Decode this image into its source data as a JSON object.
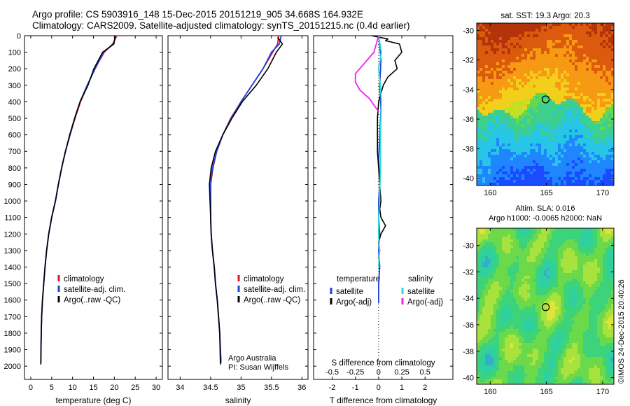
{
  "header": {
    "line1": "Argo profile: CS 5903916_148 15-Dec-2015 20151219_905 34.668S 164.932E",
    "line2": "Climatology: CARS2009. Satellite-adjusted climatology: synTS_20151215.nc (0.4d earlier)"
  },
  "credit": "©IMOS 24-Dec-2015 20:40:26",
  "colors": {
    "climatology": "#e8112d",
    "satellite": "#1f3fe0",
    "argo": "#000000",
    "sat_salinity": "#22dddd",
    "argo_salinity": "#ee22ee",
    "marker_edge": "#000000"
  },
  "chart_data": [
    {
      "id": "temperature-profile",
      "type": "line",
      "xlabel": "temperature (deg C)",
      "ylabel": "",
      "xlim": [
        -1.5,
        31.5
      ],
      "ylim": [
        2080,
        0
      ],
      "xticks": [
        0,
        5,
        10,
        15,
        20,
        25,
        30
      ],
      "yticks": [
        0,
        100,
        200,
        300,
        400,
        500,
        600,
        700,
        800,
        900,
        1000,
        1100,
        1200,
        1300,
        1400,
        1500,
        1600,
        1700,
        1800,
        1900,
        2000
      ],
      "legend": {
        "position": "lower-middle",
        "entries": [
          "climatology",
          "satellite-adj. clim.",
          "Argo(..raw -QC)"
        ]
      },
      "series": [
        {
          "name": "climatology",
          "color_key": "climatology",
          "x": [
            20.6,
            19.6,
            17.6,
            15.3,
            13.6,
            11.9,
            10.6,
            9.4,
            8.3,
            7.4,
            6.6,
            5.9,
            5.0,
            4.3,
            3.8,
            3.4,
            3.1,
            2.8,
            2.6,
            2.5,
            2.4
          ],
          "y": [
            0,
            50,
            100,
            200,
            300,
            400,
            500,
            600,
            700,
            800,
            900,
            1000,
            1100,
            1200,
            1300,
            1400,
            1500,
            1600,
            1700,
            1800,
            1980
          ]
        },
        {
          "name": "satellite-adj. clim.",
          "color_key": "satellite",
          "x": [
            20.3,
            19.8,
            17.4,
            15.4,
            13.5,
            11.8,
            10.5,
            9.4,
            8.3,
            7.4,
            6.6,
            5.9,
            5.0,
            4.3,
            3.8,
            3.4,
            3.1,
            2.8,
            2.6,
            2.5,
            2.4
          ],
          "y": [
            0,
            50,
            100,
            200,
            300,
            400,
            500,
            600,
            700,
            800,
            900,
            1000,
            1100,
            1200,
            1300,
            1400,
            1500,
            1600,
            1700,
            1800,
            1980
          ]
        },
        {
          "name": "Argo(..raw -QC)",
          "color_key": "argo",
          "x": [
            20.2,
            19.9,
            17.2,
            15.1,
            13.7,
            11.8,
            10.5,
            9.3,
            8.3,
            7.4,
            6.6,
            5.9,
            5.0,
            4.3,
            3.8,
            3.4,
            3.1,
            2.8,
            2.6,
            2.5,
            2.4
          ],
          "y": [
            5,
            50,
            100,
            200,
            300,
            400,
            500,
            600,
            700,
            800,
            900,
            1000,
            1100,
            1200,
            1300,
            1400,
            1500,
            1600,
            1700,
            1800,
            1990
          ]
        }
      ]
    },
    {
      "id": "salinity-profile",
      "type": "line",
      "xlabel": "salinity",
      "xlim": [
        33.8,
        36.1
      ],
      "ylim": [
        2080,
        0
      ],
      "xticks": [
        34,
        34.5,
        35,
        35.5,
        36
      ],
      "legend": {
        "position": "lower-right",
        "entries": [
          "climatology",
          "satellite-adj. clim.",
          "Argo(..raw -QC)"
        ]
      },
      "annotation": [
        "Argo Australia",
        "PI: Susan Wijffels"
      ],
      "series": [
        {
          "name": "climatology",
          "color_key": "climatology",
          "x": [
            35.62,
            35.6,
            35.52,
            35.36,
            35.18,
            35.0,
            34.83,
            34.7,
            34.6,
            34.54,
            34.5,
            34.5,
            34.5,
            34.51,
            34.53,
            34.56,
            34.58,
            34.61,
            34.63,
            34.65,
            34.67
          ],
          "y": [
            0,
            50,
            100,
            200,
            300,
            400,
            500,
            600,
            700,
            800,
            900,
            1000,
            1100,
            1200,
            1300,
            1400,
            1500,
            1600,
            1700,
            1800,
            1980
          ]
        },
        {
          "name": "satellite-adj. clim.",
          "color_key": "satellite",
          "x": [
            35.66,
            35.63,
            35.5,
            35.36,
            35.18,
            35.0,
            34.84,
            34.7,
            34.6,
            34.53,
            34.5,
            34.5,
            34.5,
            34.51,
            34.53,
            34.56,
            34.58,
            34.61,
            34.63,
            34.65,
            34.67
          ],
          "y": [
            0,
            50,
            100,
            200,
            300,
            400,
            500,
            600,
            700,
            800,
            900,
            1000,
            1100,
            1200,
            1300,
            1400,
            1500,
            1600,
            1700,
            1800,
            1980
          ]
        },
        {
          "name": "Argo(..raw -QC)",
          "color_key": "argo",
          "x": [
            35.6,
            35.68,
            35.58,
            35.44,
            35.25,
            35.02,
            34.85,
            34.7,
            34.58,
            34.51,
            34.48,
            34.49,
            34.5,
            34.51,
            34.53,
            34.56,
            34.58,
            34.61,
            34.63,
            34.65,
            34.66
          ],
          "y": [
            10,
            50,
            100,
            200,
            300,
            400,
            500,
            600,
            700,
            800,
            900,
            1000,
            1100,
            1200,
            1300,
            1400,
            1500,
            1600,
            1700,
            1800,
            1990
          ]
        }
      ]
    },
    {
      "id": "difference-profile",
      "type": "line",
      "xlabel": "T difference from climatology",
      "xlabel_top": "S difference from climatology",
      "xlim": [
        -2.8,
        3.2
      ],
      "ylim": [
        2080,
        0
      ],
      "xticks": [
        -2,
        -1,
        0,
        1,
        2
      ],
      "xticks_s": [
        -0.5,
        -0.25,
        0,
        0.25,
        0.5
      ],
      "xticks_s_labels": [
        "-0.5",
        "-0.25",
        "0",
        "0.25",
        "0.5"
      ],
      "legend": {
        "position": "lower-middle",
        "groups": [
          {
            "title": "temperature",
            "entries": [
              "satellite",
              "Argo(-adj)"
            ]
          },
          {
            "title": "salinity",
            "entries": [
              "satellite",
              "Argo(-adj)"
            ]
          }
        ]
      },
      "series": [
        {
          "name": "temperature satellite",
          "color_key": "satellite",
          "x": [
            0.0,
            0.05,
            0.1,
            0.05,
            0.1,
            0.05,
            0.0,
            0.05,
            0.0,
            0.0,
            0.05,
            0.0,
            0.05,
            0.0,
            0.0
          ],
          "y": [
            0,
            60,
            150,
            300,
            450,
            600,
            750,
            900,
            1000,
            1100,
            1200,
            1300,
            1400,
            1500,
            1620
          ]
        },
        {
          "name": "temperature Argo(-adj)",
          "color_key": "argo",
          "x": [
            -0.3,
            0.4,
            0.3,
            0.9,
            1.0,
            0.7,
            0.8,
            0.4,
            0.2,
            0.1,
            0.0,
            -0.05,
            -0.05,
            -0.05,
            0.0,
            0.05,
            0.1,
            0.05,
            0.1,
            0.3,
            0.1,
            0.0,
            0.05,
            0.0
          ],
          "y": [
            0,
            20,
            30,
            50,
            100,
            150,
            200,
            250,
            300,
            350,
            400,
            500,
            600,
            700,
            800,
            900,
            1000,
            1050,
            1100,
            1150,
            1200,
            1250,
            1300,
            1350
          ]
        },
        {
          "name": "salinity satellite",
          "color_key": "sat_salinity",
          "x": [
            0.0,
            0.03,
            0.0,
            0.02,
            0.03,
            0.02,
            0.02,
            0.01,
            0.0,
            0.0,
            0.01,
            0.0
          ],
          "y": [
            0,
            100,
            200,
            300,
            400,
            600,
            800,
            1000,
            1100,
            1200,
            1300,
            1400
          ]
        },
        {
          "name": "salinity Argo(-adj)",
          "color_key": "argo_salinity",
          "x": [
            0.0,
            -0.05,
            -0.25,
            -0.25,
            -0.2,
            -0.1,
            -0.05,
            0.0
          ],
          "y": [
            0,
            100,
            230,
            280,
            330,
            380,
            420,
            460
          ]
        }
      ]
    },
    {
      "id": "sst-map",
      "type": "heatmap",
      "title": "sat. SST: 19.3  Argo: 20.3",
      "xlim": [
        158.8,
        171.0
      ],
      "ylim": [
        -40.5,
        -29.5
      ],
      "xticks": [
        160,
        165,
        170
      ],
      "yticks": [
        -30,
        -32,
        -34,
        -36,
        -38,
        -40
      ],
      "marker": {
        "lon": 164.932,
        "lat": -34.668
      },
      "palette": [
        "#1a4bff",
        "#1f86ff",
        "#27c6e6",
        "#3ccf8e",
        "#66d94a",
        "#b8e327",
        "#f2cf1a",
        "#f59a12",
        "#dc5a0d",
        "#b3340a"
      ]
    },
    {
      "id": "sla-map",
      "type": "heatmap",
      "title": "Altim. SLA: 0.016",
      "subtitle": "Argo h1000: -0.0065 h2000: NaN",
      "xlim": [
        158.8,
        171.0
      ],
      "ylim": [
        -40.5,
        -28.7
      ],
      "xticks": [
        160,
        165,
        170
      ],
      "yticks": [
        -30,
        -32,
        -34,
        -36,
        -38,
        -40
      ],
      "marker": {
        "lon": 164.932,
        "lat": -34.668
      },
      "palette": [
        "#33b0c8",
        "#2fd0a0",
        "#3cd37a",
        "#6cd94a",
        "#a8e23c",
        "#dde43a",
        "#f4c23a"
      ]
    }
  ]
}
